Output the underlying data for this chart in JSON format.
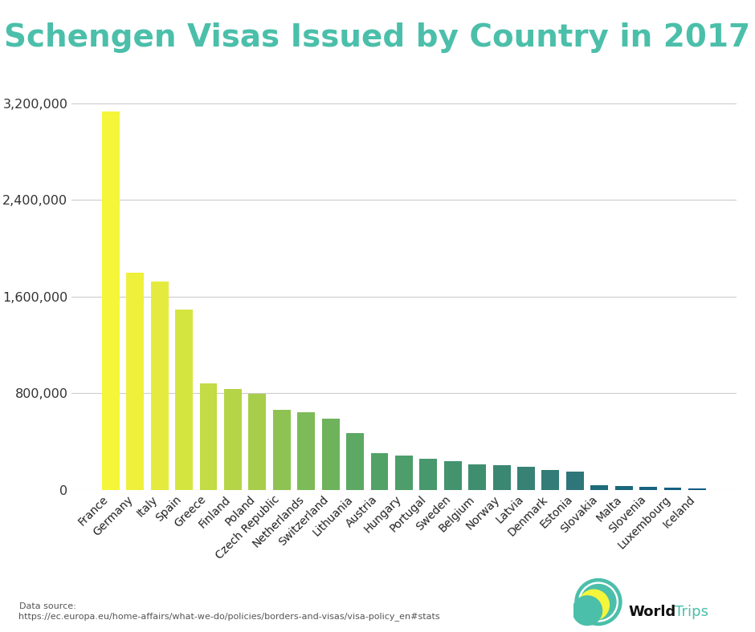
{
  "title": "Schengen Visas Issued by Country in 2017",
  "title_color": "#4BBFAA",
  "background_color": "#ffffff",
  "categories": [
    "France",
    "Germany",
    "Italy",
    "Spain",
    "Greece",
    "Finland",
    "Poland",
    "Czech Republic",
    "Netherlands",
    "Switzerland",
    "Lithuania",
    "Austria",
    "Hungary",
    "Portugal",
    "Sweden",
    "Belgium",
    "Norway",
    "Latvia",
    "Denmark",
    "Estonia",
    "Slovakia",
    "Malta",
    "Slovenia",
    "Luxembourg",
    "Iceland"
  ],
  "values": [
    3132846,
    1793872,
    1726807,
    1488880,
    882577,
    833183,
    793499,
    660736,
    644480,
    588219,
    470065,
    302620,
    280530,
    255730,
    235000,
    213000,
    205000,
    193000,
    162000,
    148000,
    37064,
    29462,
    22345,
    16254,
    9893
  ],
  "bar_colors": [
    "#f5f53a",
    "#eef03c",
    "#e5eb3e",
    "#d5e540",
    "#c3db45",
    "#b5d448",
    "#a8cd4a",
    "#8ec252",
    "#7dba58",
    "#6eb35c",
    "#5da862",
    "#52a267",
    "#4d9e6a",
    "#47986c",
    "#43936e",
    "#3f8e70",
    "#3b8872",
    "#378275",
    "#337c77",
    "#2f767a",
    "#1e6b7c",
    "#1b677e",
    "#186380",
    "#155f82",
    "#125b84"
  ],
  "datasource_text": "Data source:\nhttps://ec.europa.eu/home-affairs/what-we-do/policies/borders-and-visas/visa-policy_en#stats",
  "ylim": [
    0,
    3400000
  ],
  "yticks": [
    0,
    800000,
    1600000,
    2400000,
    3200000
  ],
  "ytick_labels": [
    "0",
    "800,000",
    "1,600,000",
    "2,400,000",
    "3,200,000"
  ]
}
